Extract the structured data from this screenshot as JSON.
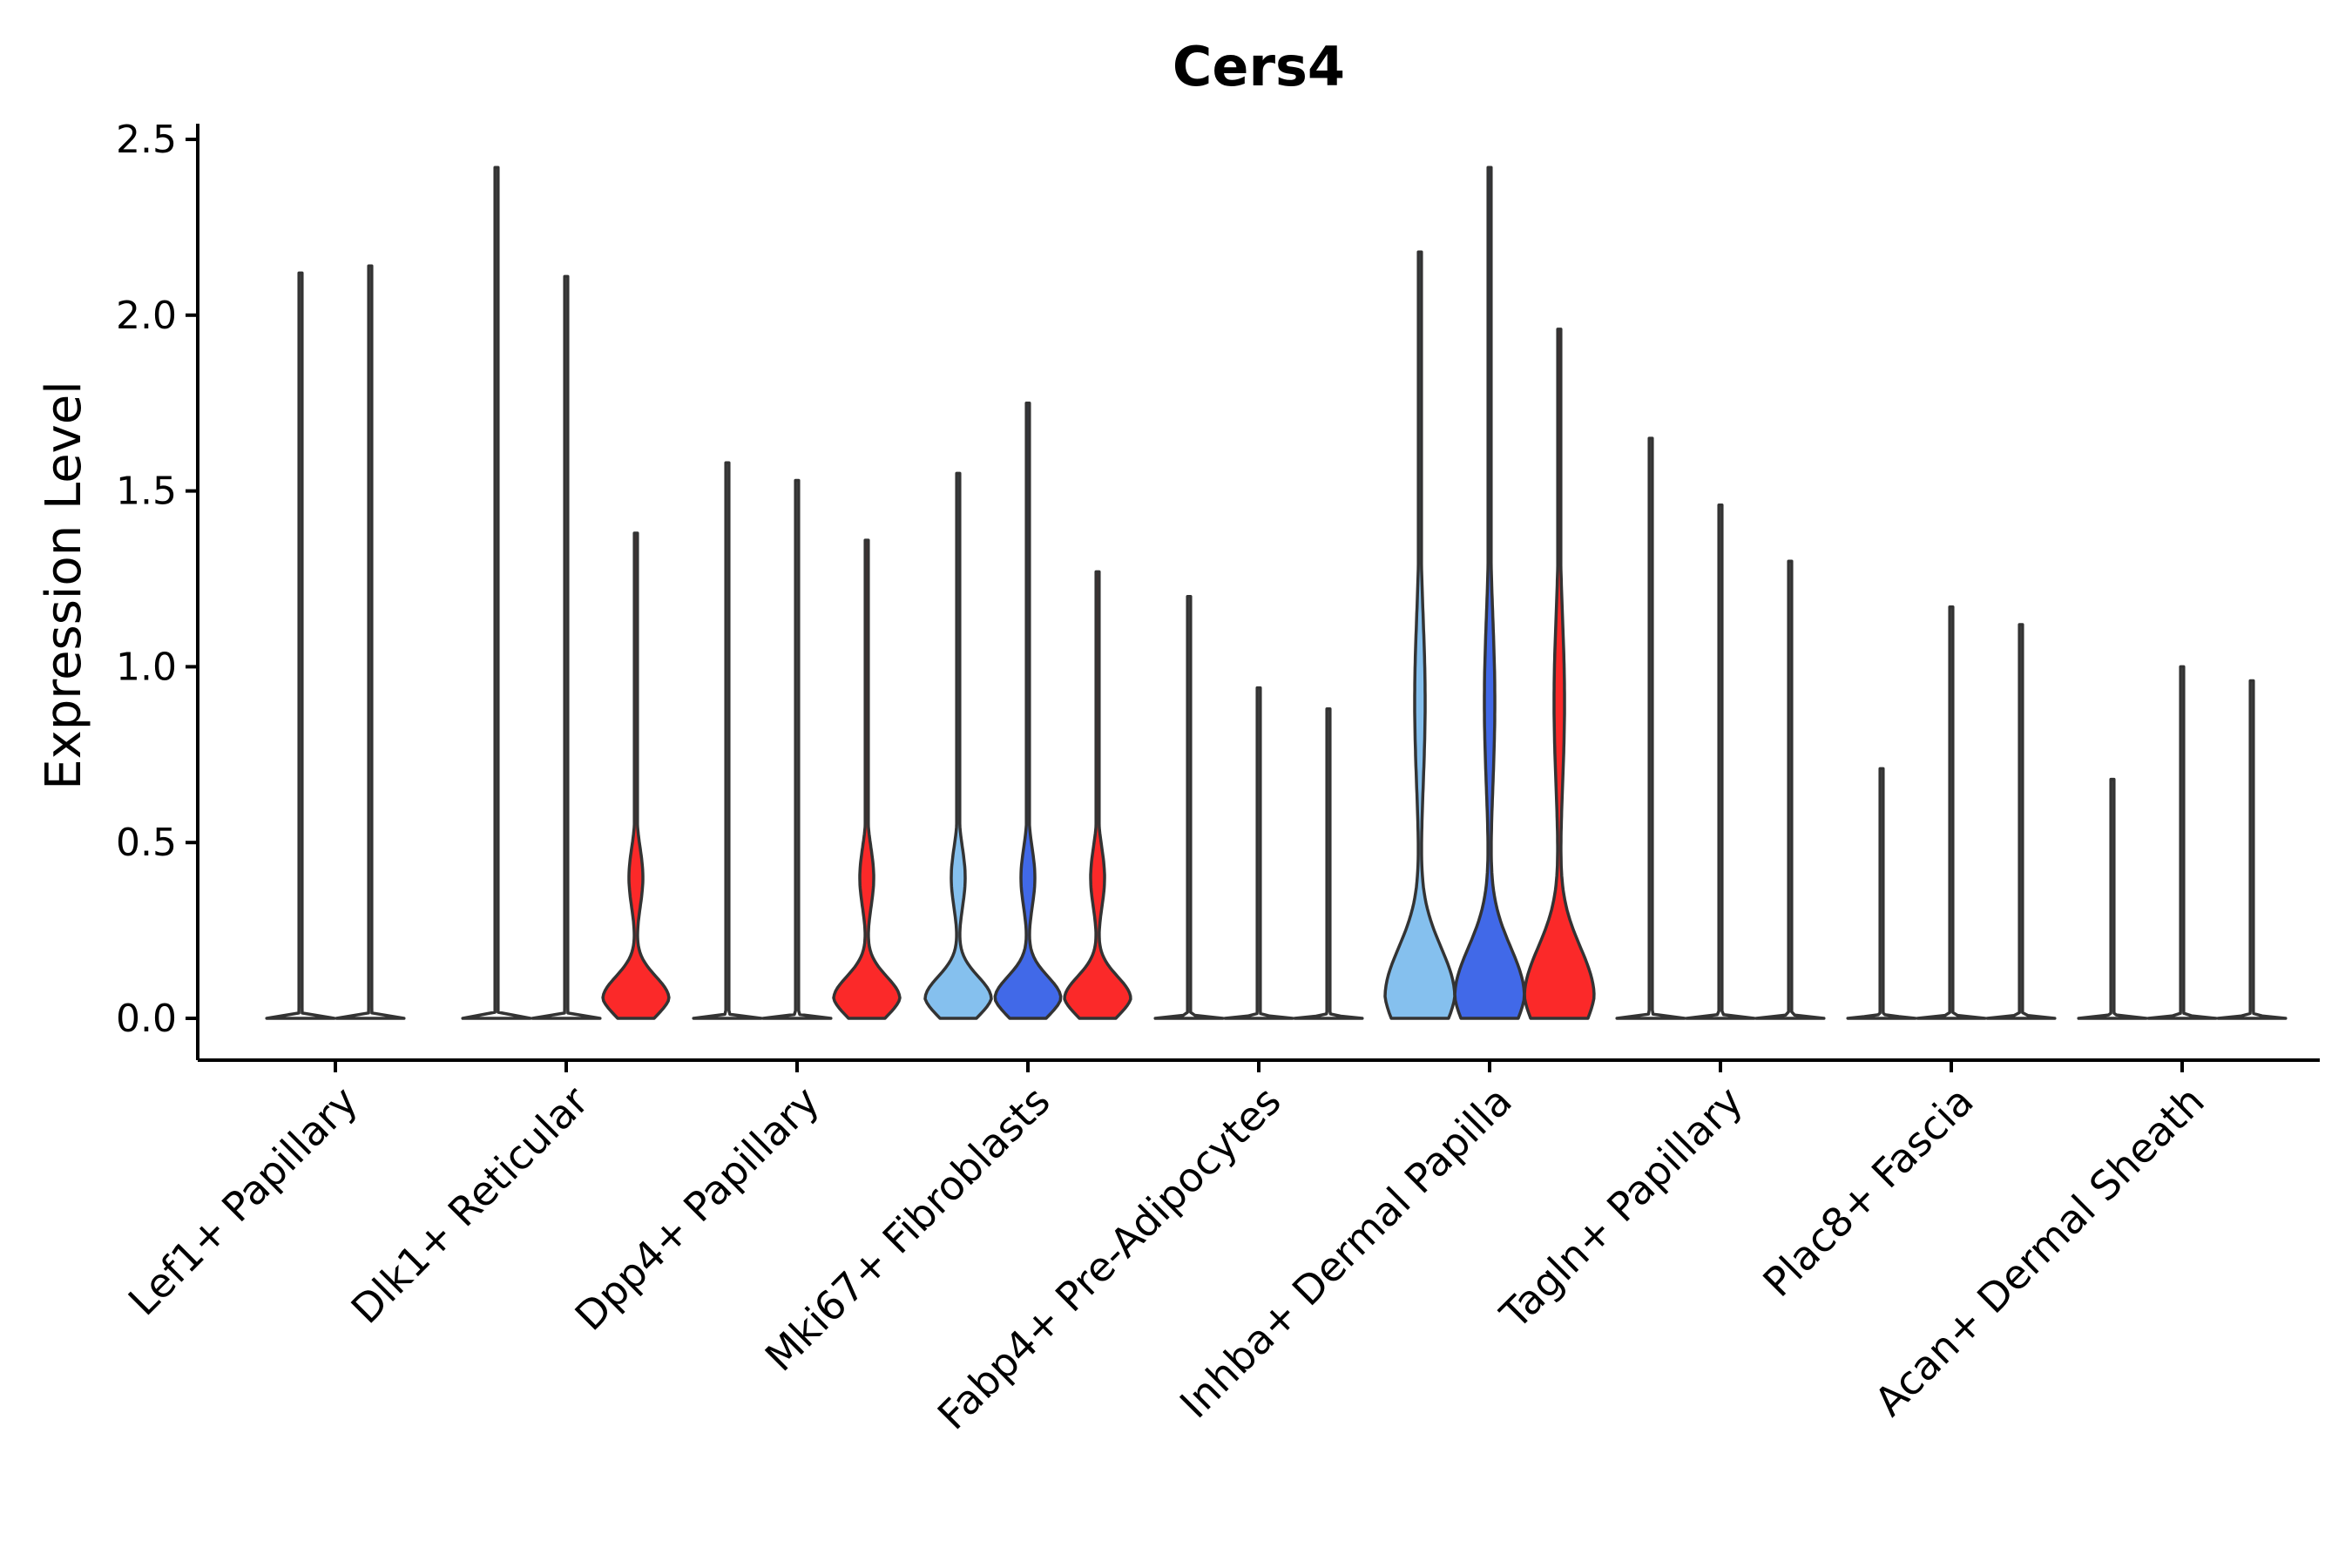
{
  "chart_data": {
    "type": "violin",
    "title": "Cers4",
    "xlabel": "",
    "ylabel": "Expression Level",
    "ylim": [
      -0.12,
      2.55
    ],
    "yticks": [
      0.0,
      0.5,
      1.0,
      1.5,
      2.0,
      2.5
    ],
    "ytick_labels": [
      "0.0",
      "0.5",
      "1.0",
      "1.5",
      "2.0",
      "2.5"
    ],
    "colors": {
      "light_blue": "#85c0ee",
      "blue": "#4169e8",
      "red": "#fb2929",
      "none": "#ffffff"
    },
    "groups": [
      {
        "label": "Lef1+ Papillary",
        "violins": [
          {
            "max": 2.12,
            "color": "none",
            "shape": "flat"
          },
          {
            "max": 2.14,
            "color": "none",
            "shape": "flat"
          }
        ]
      },
      {
        "label": "Dlk1+ Reticular",
        "violins": [
          {
            "max": 2.42,
            "color": "none",
            "shape": "flat"
          },
          {
            "max": 2.11,
            "color": "none",
            "shape": "flat"
          },
          {
            "max": 1.38,
            "color": "red",
            "shape": "mid"
          }
        ]
      },
      {
        "label": "Dpp4+ Papillary",
        "violins": [
          {
            "max": 1.58,
            "color": "none",
            "shape": "flat"
          },
          {
            "max": 1.53,
            "color": "none",
            "shape": "flat"
          },
          {
            "max": 1.36,
            "color": "red",
            "shape": "mid"
          }
        ]
      },
      {
        "label": "Mki67+ Fibroblasts",
        "violins": [
          {
            "max": 1.55,
            "color": "light_blue",
            "shape": "mid"
          },
          {
            "max": 1.75,
            "color": "blue",
            "shape": "mid"
          },
          {
            "max": 1.27,
            "color": "red",
            "shape": "mid"
          }
        ]
      },
      {
        "label": "Fabp4+ Pre-Adipocytes",
        "violins": [
          {
            "max": 1.2,
            "color": "none",
            "shape": "flat"
          },
          {
            "max": 0.94,
            "color": "none",
            "shape": "flat"
          },
          {
            "max": 0.88,
            "color": "none",
            "shape": "flat"
          }
        ]
      },
      {
        "label": "Inhba+ Dermal Papilla",
        "violins": [
          {
            "max": 2.18,
            "color": "light_blue",
            "shape": "big"
          },
          {
            "max": 2.42,
            "color": "blue",
            "shape": "big"
          },
          {
            "max": 1.96,
            "color": "red",
            "shape": "big"
          }
        ]
      },
      {
        "label": "Tagln+ Papillary",
        "violins": [
          {
            "max": 1.65,
            "color": "none",
            "shape": "flat"
          },
          {
            "max": 1.46,
            "color": "none",
            "shape": "flat"
          },
          {
            "max": 1.3,
            "color": "none",
            "shape": "flat"
          }
        ]
      },
      {
        "label": "Plac8+ Fascia",
        "violins": [
          {
            "max": 0.71,
            "color": "none",
            "shape": "flat"
          },
          {
            "max": 1.17,
            "color": "none",
            "shape": "flat"
          },
          {
            "max": 1.12,
            "color": "none",
            "shape": "flat"
          }
        ]
      },
      {
        "label": "Acan+ Dermal Sheath",
        "violins": [
          {
            "max": 0.68,
            "color": "none",
            "shape": "flat"
          },
          {
            "max": 1.0,
            "color": "none",
            "shape": "flat"
          },
          {
            "max": 0.96,
            "color": "none",
            "shape": "flat"
          }
        ]
      }
    ]
  }
}
